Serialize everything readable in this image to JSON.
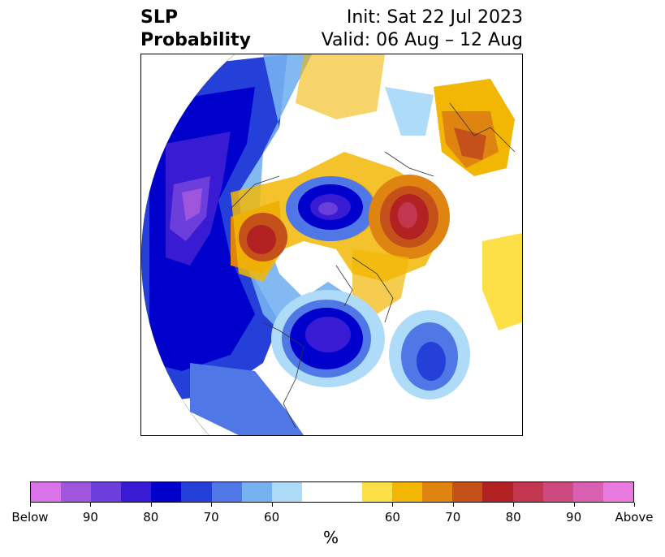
{
  "title": {
    "left_line1": "SLP",
    "left_line2": "Probability",
    "right_line1": "Init: Sat 22 Jul 2023",
    "right_line2": "Valid: 06 Aug – 12 Aug"
  },
  "colorbar": {
    "unit": "%",
    "colors": [
      "#d873e8",
      "#a055dd",
      "#6c3fdc",
      "#3a1bd4",
      "#0000cd",
      "#2440d8",
      "#4f78e6",
      "#76b1f2",
      "#aedcf8",
      "#ffffff",
      "#ffffff",
      "#fde047",
      "#f2b705",
      "#df8410",
      "#c4501a",
      "#b22222",
      "#c2364f",
      "#cc4a80",
      "#d95fb1",
      "#e87ae0"
    ],
    "tick_labels": [
      "Below",
      "90",
      "80",
      "70",
      "60",
      "60",
      "70",
      "80",
      "90",
      "Above"
    ]
  },
  "map": {
    "projection": "north-polar-stereographic",
    "field": "SLP probability anomaly",
    "features": [
      {
        "kind": "below",
        "level": 90,
        "region": "North Pacific / Aleutians"
      },
      {
        "kind": "below",
        "level": 80,
        "region": "Arctic Ocean (central)"
      },
      {
        "kind": "below",
        "level": 80,
        "region": "Eastern Canada / Hudson Bay"
      },
      {
        "kind": "below",
        "level": 80,
        "region": "North Atlantic"
      },
      {
        "kind": "above",
        "level": 80,
        "region": "Siberia / Kara Sea"
      },
      {
        "kind": "above",
        "level": 80,
        "region": "Alaska / Beaufort Sea"
      },
      {
        "kind": "above",
        "level": 70,
        "region": "Eastern Europe"
      }
    ]
  }
}
